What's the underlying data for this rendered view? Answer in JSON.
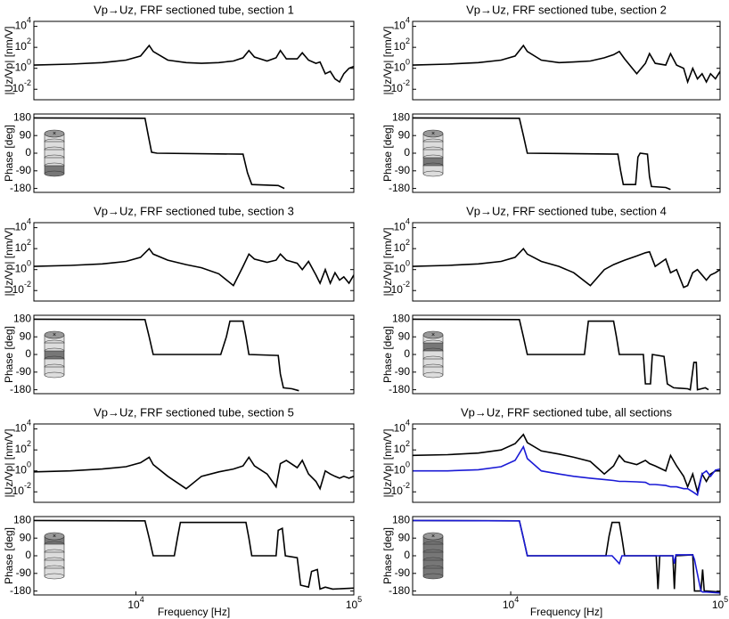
{
  "chart_data": [
    {
      "type": "line",
      "title": "Vp→Uz, FRF sectioned tube, section 1",
      "ylabel": "|Uz/Vp| [nm/V]",
      "log_x": true,
      "log_y": true,
      "x": [
        3400,
        5000,
        7000,
        9000,
        10500,
        11500,
        12000,
        14000,
        17000,
        20000,
        24000,
        28000,
        31000,
        33000,
        35000,
        40000,
        44000,
        46000,
        49000,
        55000,
        58000,
        62000,
        67000,
        70000,
        74000,
        78000,
        82000,
        86000,
        90000,
        95000,
        100000
      ],
      "series": [
        {
          "color": "#000000",
          "values": [
            2,
            2.5,
            3.5,
            6,
            15,
            150,
            40,
            6,
            3.5,
            3,
            3.5,
            5,
            10,
            50,
            12,
            5,
            10,
            50,
            8,
            8,
            30,
            6,
            3,
            4,
            0.3,
            0.5,
            0.1,
            0.05,
            0.3,
            1,
            1.5
          ]
        }
      ],
      "xlim": [
        3400,
        100000
      ],
      "ylim": [
        0.001,
        30000
      ],
      "yticks": [
        {
          "value": 0.01,
          "label": "10",
          "exponent": "-2"
        },
        {
          "value": 1,
          "label": "10",
          "exponent": "0"
        },
        {
          "value": 100,
          "label": "10",
          "exponent": "2"
        },
        {
          "value": 10000,
          "label": "10",
          "exponent": "4"
        }
      ]
    },
    {
      "type": "line",
      "ylabel": "Phase [deg]",
      "log_x": true,
      "x": [
        3400,
        11000,
        11400,
        11800,
        12500,
        31000,
        32500,
        34000,
        45000,
        48000
      ],
      "series": [
        {
          "color": "#000000",
          "values": [
            180,
            178,
            90,
            5,
            0,
            -5,
            -100,
            -160,
            -165,
            -180
          ]
        }
      ],
      "xlim": [
        3400,
        100000
      ],
      "ylim": [
        -200,
        200
      ],
      "yticks": [
        180,
        90,
        0,
        -90,
        -180
      ]
    },
    {
      "type": "line",
      "title": "Vp→Uz, FRF sectioned tube, section 2",
      "ylabel": "|Uz/Vp| [nm/V]",
      "log_x": true,
      "log_y": true,
      "x": [
        3400,
        5000,
        7000,
        9000,
        10500,
        11500,
        12000,
        14000,
        17000,
        20000,
        24000,
        28000,
        31000,
        33000,
        35000,
        40000,
        44000,
        46000,
        49000,
        55000,
        58000,
        62000,
        67000,
        70000,
        74000,
        78000,
        82000,
        86000,
        90000,
        95000,
        100000
      ],
      "series": [
        {
          "color": "#000000",
          "values": [
            2,
            2.5,
            3.5,
            6,
            15,
            150,
            40,
            6,
            3.5,
            4,
            5,
            10,
            20,
            40,
            8,
            0.3,
            3,
            25,
            3,
            2,
            25,
            2,
            1,
            0.05,
            1,
            0.1,
            0.3,
            0.05,
            0.3,
            0.1,
            0.5
          ]
        }
      ],
      "xlim": [
        3400,
        100000
      ],
      "ylim": [
        0.001,
        30000
      ],
      "yticks": [
        {
          "value": 0.01,
          "label": "10",
          "exponent": "-2"
        },
        {
          "value": 1,
          "label": "10",
          "exponent": "0"
        },
        {
          "value": 100,
          "label": "10",
          "exponent": "2"
        },
        {
          "value": 10000,
          "label": "10",
          "exponent": "4"
        }
      ]
    },
    {
      "type": "line",
      "ylabel": "Phase [deg]",
      "log_x": true,
      "x": [
        3400,
        11000,
        11500,
        12000,
        32500,
        33500,
        34500,
        39500,
        40500,
        41500,
        45000,
        46000,
        47000,
        55000,
        58000
      ],
      "series": [
        {
          "color": "#000000",
          "values": [
            180,
            178,
            90,
            0,
            -5,
            -90,
            -160,
            -160,
            -20,
            0,
            -5,
            -120,
            -170,
            -175,
            -185
          ]
        }
      ],
      "xlim": [
        3400,
        100000
      ],
      "ylim": [
        -200,
        200
      ],
      "yticks": [
        180,
        90,
        0,
        -90,
        -180
      ]
    },
    {
      "type": "line",
      "title": "Vp→Uz, FRF sectioned tube, section 3",
      "ylabel": "|Uz/Vp| [nm/V]",
      "log_x": true,
      "log_y": true,
      "x": [
        3400,
        5000,
        7000,
        9000,
        10500,
        11500,
        12000,
        14000,
        17000,
        20000,
        24000,
        28000,
        31000,
        33000,
        35000,
        40000,
        44000,
        46000,
        49000,
        55000,
        58000,
        62000,
        67000,
        70000,
        74000,
        78000,
        82000,
        86000,
        90000,
        95000,
        100000
      ],
      "series": [
        {
          "color": "#000000",
          "values": [
            2,
            2.5,
            3.5,
            6,
            15,
            100,
            30,
            8,
            3,
            1.5,
            0.4,
            0.03,
            2,
            30,
            10,
            5,
            8,
            30,
            8,
            4,
            1,
            6,
            0.3,
            0.05,
            1,
            0.05,
            0.5,
            0.1,
            0.2,
            0.05,
            0.3
          ]
        }
      ],
      "xlim": [
        3400,
        100000
      ],
      "ylim": [
        0.001,
        30000
      ],
      "yticks": [
        {
          "value": 0.01,
          "label": "10",
          "exponent": "-2"
        },
        {
          "value": 1,
          "label": "10",
          "exponent": "0"
        },
        {
          "value": 100,
          "label": "10",
          "exponent": "2"
        },
        {
          "value": 10000,
          "label": "10",
          "exponent": "4"
        }
      ]
    },
    {
      "type": "line",
      "ylabel": "Phase [deg]",
      "log_x": true,
      "x": [
        3400,
        11000,
        11500,
        12000,
        24500,
        26000,
        27000,
        31000,
        32000,
        33000,
        45000,
        46000,
        47500,
        52000,
        56000
      ],
      "series": [
        {
          "color": "#000000",
          "values": [
            180,
            178,
            90,
            0,
            0,
            90,
            170,
            170,
            90,
            0,
            -5,
            -100,
            -170,
            -175,
            -185
          ]
        }
      ],
      "xlim": [
        3400,
        100000
      ],
      "ylim": [
        -200,
        200
      ],
      "yticks": [
        180,
        90,
        0,
        -90,
        -180
      ]
    },
    {
      "type": "line",
      "title": "Vp→Uz, FRF sectioned tube, section 4",
      "ylabel": "|Uz/Vp| [nm/V]",
      "log_x": true,
      "log_y": true,
      "x": [
        3400,
        5000,
        7000,
        9000,
        10500,
        11500,
        12000,
        14000,
        17000,
        20000,
        24000,
        28000,
        31000,
        33000,
        35000,
        40000,
        44000,
        46000,
        49000,
        55000,
        58000,
        62000,
        67000,
        70000,
        74000,
        78000,
        82000,
        86000,
        90000,
        95000,
        100000
      ],
      "series": [
        {
          "color": "#000000",
          "values": [
            2,
            2.5,
            3.5,
            6,
            15,
            100,
            30,
            6,
            2,
            0.5,
            0.03,
            1,
            3,
            5,
            8,
            20,
            40,
            50,
            2,
            10,
            0.5,
            1,
            0.02,
            0.03,
            0.5,
            1,
            0.3,
            0.1,
            0.3,
            0.5,
            1
          ]
        }
      ],
      "xlim": [
        3400,
        100000
      ],
      "ylim": [
        0.001,
        30000
      ],
      "yticks": [
        {
          "value": 0.01,
          "label": "10",
          "exponent": "-2"
        },
        {
          "value": 1,
          "label": "10",
          "exponent": "0"
        },
        {
          "value": 100,
          "label": "10",
          "exponent": "2"
        },
        {
          "value": 10000,
          "label": "10",
          "exponent": "4"
        }
      ]
    },
    {
      "type": "line",
      "ylabel": "Phase [deg]",
      "log_x": true,
      "x": [
        3400,
        11000,
        11500,
        12000,
        22500,
        23000,
        23500,
        31000,
        32000,
        33000,
        43000,
        44000,
        46500,
        47500,
        54000,
        56000,
        60000,
        70000,
        72000,
        75000,
        77000,
        78000,
        85000,
        88000
      ],
      "series": [
        {
          "color": "#000000",
          "values": [
            180,
            178,
            90,
            0,
            0,
            90,
            170,
            170,
            90,
            0,
            0,
            -150,
            -150,
            0,
            -10,
            -150,
            -170,
            -175,
            -180,
            -40,
            -40,
            -180,
            -170,
            -180
          ]
        }
      ],
      "xlim": [
        3400,
        100000
      ],
      "ylim": [
        -200,
        200
      ],
      "yticks": [
        180,
        90,
        0,
        -90,
        -180
      ]
    },
    {
      "type": "line",
      "title": "Vp→Uz, FRF sectioned tube, section 5",
      "ylabel": "|Uz/Vp| [nm/V]",
      "log_x": true,
      "log_y": true,
      "x": [
        3400,
        5000,
        7000,
        9000,
        10500,
        11500,
        12000,
        14000,
        17000,
        20000,
        24000,
        28000,
        31000,
        33000,
        35000,
        40000,
        44000,
        46000,
        49000,
        55000,
        58000,
        62000,
        67000,
        70000,
        74000,
        78000,
        82000,
        86000,
        90000,
        95000,
        100000
      ],
      "series": [
        {
          "color": "#000000",
          "values": [
            0.8,
            1,
            1.5,
            2.5,
            6,
            20,
            4,
            0.3,
            0.02,
            0.3,
            0.8,
            1.5,
            3,
            20,
            3,
            0.5,
            0.03,
            5,
            10,
            2,
            10,
            0.5,
            0.1,
            0.02,
            1,
            0.5,
            0.3,
            0.2,
            0.3,
            0.2,
            0.3
          ]
        }
      ],
      "xlim": [
        3400,
        100000
      ],
      "ylim": [
        0.001,
        30000
      ],
      "yticks": [
        {
          "value": 0.01,
          "label": "10",
          "exponent": "-2"
        },
        {
          "value": 1,
          "label": "10",
          "exponent": "0"
        },
        {
          "value": 100,
          "label": "10",
          "exponent": "2"
        },
        {
          "value": 10000,
          "label": "10",
          "exponent": "4"
        }
      ]
    },
    {
      "type": "line",
      "ylabel": "Phase [deg]",
      "xlabel": "Frequency [Hz]",
      "log_x": true,
      "x": [
        3400,
        11000,
        11500,
        12000,
        15000,
        15500,
        16000,
        32000,
        33000,
        34000,
        44000,
        45000,
        47000,
        48500,
        55000,
        57000,
        62000,
        64000,
        68000,
        70000,
        74000,
        80000,
        100000
      ],
      "series": [
        {
          "color": "#000000",
          "values": [
            180,
            178,
            90,
            0,
            0,
            90,
            170,
            170,
            90,
            0,
            0,
            130,
            140,
            0,
            -10,
            -150,
            -160,
            -80,
            -70,
            -170,
            -160,
            -170,
            -165
          ]
        }
      ],
      "xlim": [
        3400,
        100000
      ],
      "ylim": [
        -200,
        200
      ],
      "yticks": [
        180,
        90,
        0,
        -90,
        -180
      ],
      "xticks": [
        {
          "value": 10000,
          "label": "10",
          "exponent": "4"
        },
        {
          "value": 100000,
          "label": "10",
          "exponent": "5"
        }
      ]
    },
    {
      "type": "line",
      "title": "Vp→Uz, FRF sectioned tube, all sections",
      "ylabel": "|Uz/Vp| [nm/V]",
      "log_x": true,
      "log_y": true,
      "x": [
        3400,
        5000,
        7000,
        9000,
        10500,
        11500,
        12000,
        14000,
        17000,
        20000,
        24000,
        28000,
        31000,
        33000,
        35000,
        40000,
        44000,
        46000,
        49000,
        55000,
        58000,
        62000,
        67000,
        70000,
        74000,
        78000,
        82000,
        86000,
        90000,
        95000,
        100000
      ],
      "series": [
        {
          "color": "#000000",
          "values": [
            30,
            35,
            50,
            100,
            400,
            3000,
            500,
            80,
            40,
            20,
            8,
            0.5,
            3,
            30,
            8,
            4,
            10,
            5,
            3,
            1,
            30,
            3,
            0.3,
            0.03,
            0.5,
            0.01,
            0.5,
            0.1,
            0.5,
            1,
            1
          ]
        },
        {
          "color": "#1a1ad6",
          "values": [
            1,
            1,
            1.3,
            2.5,
            10,
            200,
            15,
            1,
            0.5,
            0.3,
            0.2,
            0.15,
            0.12,
            0.1,
            0.1,
            0.09,
            0.08,
            0.05,
            0.05,
            0.04,
            0.03,
            0.03,
            0.02,
            0.02,
            0.01,
            0.005,
            0.5,
            1,
            0.3,
            1.2,
            1.5
          ]
        }
      ],
      "xlim": [
        3400,
        100000
      ],
      "ylim": [
        0.001,
        30000
      ],
      "yticks": [
        {
          "value": 0.01,
          "label": "10",
          "exponent": "-2"
        },
        {
          "value": 1,
          "label": "10",
          "exponent": "0"
        },
        {
          "value": 100,
          "label": "10",
          "exponent": "2"
        },
        {
          "value": 10000,
          "label": "10",
          "exponent": "4"
        }
      ]
    },
    {
      "type": "line",
      "ylabel": "Phase [deg]",
      "xlabel": "Frequency [Hz]",
      "log_x": true,
      "x": [
        3400,
        11000,
        11500,
        12000,
        28500,
        29500,
        30500,
        33000,
        34000,
        35000,
        49500,
        50500,
        51500,
        59500,
        60500,
        61500,
        74000,
        75500,
        81000,
        82500,
        84000,
        86000,
        100000
      ],
      "series": [
        {
          "color": "#000000",
          "values": [
            180,
            178,
            90,
            0,
            0,
            100,
            170,
            170,
            90,
            0,
            0,
            -170,
            0,
            0,
            -170,
            0,
            5,
            -180,
            -180,
            -70,
            -180,
            -180,
            -185
          ]
        },
        {
          "color": "#1a1ad6",
          "values": [
            180,
            178,
            90,
            0,
            0,
            0,
            0,
            -40,
            0,
            0,
            0,
            0,
            0,
            0,
            -40,
            5,
            5,
            -20,
            -180,
            -185,
            -185,
            -185,
            -190
          ]
        }
      ],
      "xlim": [
        3400,
        100000
      ],
      "ylim": [
        -200,
        200
      ],
      "yticks": [
        180,
        90,
        0,
        -90,
        -180
      ],
      "xticks": [
        {
          "value": 10000,
          "label": "10",
          "exponent": "4"
        },
        {
          "value": 100000,
          "label": "10",
          "exponent": "5"
        }
      ]
    }
  ]
}
